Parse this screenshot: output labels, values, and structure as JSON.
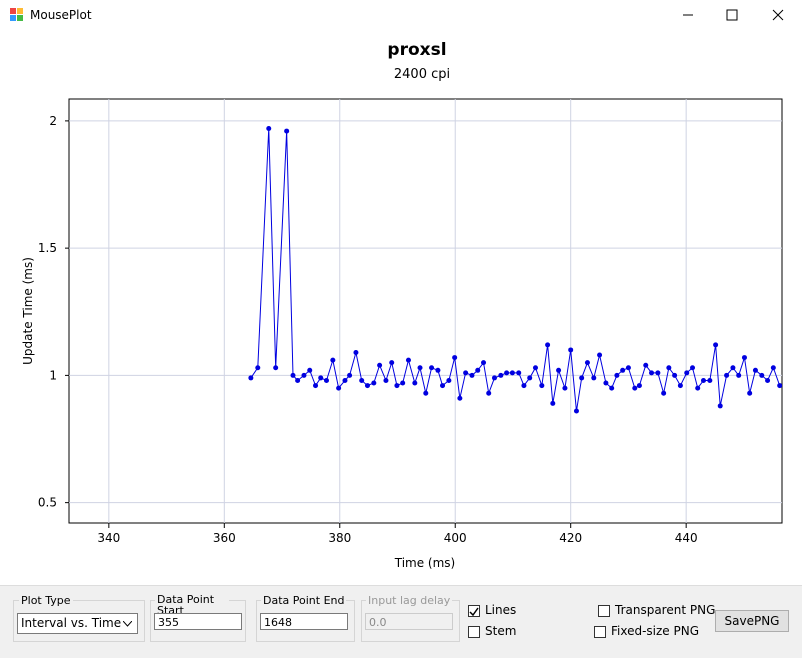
{
  "window": {
    "title": "MousePlot"
  },
  "chart_data": {
    "type": "line",
    "title": "proxsl",
    "subtitle": "2400 cpi",
    "xlabel": "Time (ms)",
    "ylabel": "Update Time (ms)",
    "color": "#0000e0",
    "grid": true,
    "x": [
      364.6,
      365.8,
      367.7,
      368.9,
      370.8,
      371.9,
      372.7,
      373.8,
      374.8,
      375.8,
      376.7,
      377.7,
      378.8,
      379.8,
      380.9,
      381.7,
      382.8,
      383.8,
      384.8,
      385.9,
      386.9,
      388.0,
      389.0,
      389.9,
      390.9,
      391.9,
      393.0,
      393.9,
      394.9,
      395.9,
      397.0,
      397.8,
      398.9,
      399.9,
      400.8,
      401.8,
      402.9,
      403.9,
      404.9,
      405.8,
      406.8,
      407.9,
      408.9,
      409.9,
      411.0,
      411.9,
      412.9,
      413.9,
      415.0,
      416.0,
      416.9,
      417.9,
      419.0,
      420.0,
      421.0,
      421.9,
      422.9,
      424.0,
      425.0,
      426.1,
      427.1,
      428.0,
      429.0,
      430.0,
      431.1,
      431.9,
      433.0,
      434.0,
      435.1,
      436.1,
      437.0,
      438.0,
      439.0,
      440.1,
      441.1,
      442.0,
      443.0,
      444.1,
      445.1,
      445.9,
      447.0,
      448.1,
      449.1,
      450.1,
      451.0,
      452.0,
      453.1,
      454.1,
      455.1,
      456.2
    ],
    "values": [
      0.99,
      1.03,
      1.97,
      1.03,
      1.96,
      1.0,
      0.98,
      1.0,
      1.02,
      0.96,
      0.99,
      0.98,
      1.06,
      0.95,
      0.98,
      1.0,
      1.09,
      0.98,
      0.96,
      0.97,
      1.04,
      0.98,
      1.05,
      0.96,
      0.97,
      1.06,
      0.97,
      1.03,
      0.93,
      1.03,
      1.02,
      0.96,
      0.98,
      1.07,
      0.91,
      1.01,
      1.0,
      1.02,
      1.05,
      0.93,
      0.99,
      1.0,
      1.01,
      1.01,
      1.01,
      0.96,
      0.99,
      1.03,
      0.96,
      1.12,
      0.89,
      1.02,
      0.95,
      1.1,
      0.86,
      0.99,
      1.05,
      0.99,
      1.08,
      0.97,
      0.95,
      1.0,
      1.02,
      1.03,
      0.95,
      0.96,
      1.04,
      1.01,
      1.01,
      0.93,
      1.03,
      1.0,
      0.96,
      1.01,
      1.03,
      0.95,
      0.98,
      0.98,
      1.12,
      0.88,
      1.0,
      1.03,
      1.0,
      1.07,
      0.93,
      1.02,
      1.0,
      0.98,
      1.03,
      0.96
    ],
    "xlim": [
      333.1,
      456.6
    ],
    "xticks": [
      340,
      360,
      380,
      400,
      420,
      440
    ],
    "ylim": [
      0.42,
      2.086
    ],
    "yticks": [
      0.5,
      1,
      1.5,
      2
    ]
  },
  "controls": {
    "plot_type": {
      "label": "Plot Type",
      "value": "Interval vs. Time"
    },
    "start": {
      "label": "Data Point Start",
      "value": "355"
    },
    "end": {
      "label": "Data Point End",
      "value": "1648"
    },
    "lag": {
      "label": "Input lag delay",
      "value": "0.0"
    },
    "lines": {
      "label": "Lines",
      "checked": true
    },
    "stem": {
      "label": "Stem",
      "checked": false
    },
    "transparent": {
      "label": "Transparent PNG",
      "checked": false
    },
    "fixed": {
      "label": "Fixed-size PNG",
      "checked": false
    },
    "save": {
      "label": "SavePNG"
    }
  }
}
